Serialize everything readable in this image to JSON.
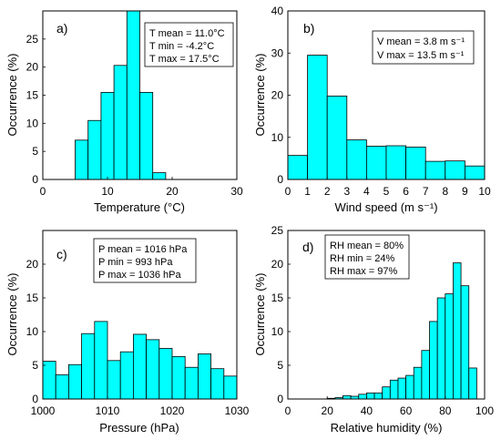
{
  "chart_data": [
    {
      "panel": "a)",
      "type": "bar",
      "xlabel": "Temperature (°C)",
      "ylabel": "Occurrence (%)",
      "xlim": [
        0,
        30
      ],
      "ylim": [
        0,
        30
      ],
      "xticks": [
        0,
        10,
        20,
        30
      ],
      "yticks": [
        0,
        5,
        10,
        15,
        20,
        25
      ],
      "bin_width": 2,
      "bins_start": [
        5,
        7,
        9,
        11,
        13,
        15,
        17
      ],
      "values": [
        7,
        10.5,
        15.5,
        20.3,
        30,
        15.5,
        1.2
      ],
      "stats": [
        "T mean = 11.0°C",
        "T min = -4.2°C",
        "T max = 17.5°C"
      ],
      "stats_position": "top-right",
      "bar_color": "#00FFFF",
      "grid": false
    },
    {
      "panel": "b)",
      "type": "bar",
      "xlabel": "Wind speed (m s⁻¹)",
      "ylabel": "Occurrence (%)",
      "xlim": [
        0,
        10
      ],
      "ylim": [
        0,
        40
      ],
      "xticks": [
        0,
        1,
        2,
        3,
        4,
        5,
        6,
        7,
        8,
        9,
        10
      ],
      "yticks": [
        0,
        10,
        20,
        30,
        40
      ],
      "bin_width": 1,
      "bins_start": [
        0,
        1,
        2,
        3,
        4,
        5,
        6,
        7,
        8,
        9
      ],
      "values": [
        5.7,
        29.5,
        19.8,
        9.4,
        7.9,
        8,
        7.7,
        4.3,
        4.4,
        3.2
      ],
      "stats": [
        "V mean = 3.8 m s⁻¹",
        "V max = 13.5 m s⁻¹"
      ],
      "stats_position": "top-right",
      "bar_color": "#00FFFF",
      "grid": false
    },
    {
      "panel": "c)",
      "type": "bar",
      "xlabel": "Pressure (hPa)",
      "ylabel": "Occurrence (%)",
      "xlim": [
        1000,
        1030
      ],
      "ylim": [
        0,
        25
      ],
      "xticks": [
        1000,
        1010,
        1020,
        1030
      ],
      "yticks": [
        0,
        5,
        10,
        15,
        20
      ],
      "bin_width": 2,
      "bins_start": [
        1000,
        1002,
        1004,
        1006,
        1008,
        1010,
        1012,
        1014,
        1016,
        1018,
        1020,
        1022,
        1024,
        1026,
        1028
      ],
      "values": [
        5.6,
        3.6,
        5.1,
        9.7,
        11.5,
        5.7,
        7,
        9.6,
        8.8,
        7.5,
        6.3,
        4.7,
        6.7,
        4.5,
        3.4
      ],
      "stats": [
        "P mean = 1016 hPa",
        "P min = 993 hPa",
        "P max = 1036 hPa"
      ],
      "stats_position": "top-left",
      "bar_color": "#00FFFF",
      "grid": false
    },
    {
      "panel": "d)",
      "type": "bar",
      "xlabel": "Relative humidity (%)",
      "ylabel": "Occurrence (%)",
      "xlim": [
        0,
        100
      ],
      "ylim": [
        0,
        25
      ],
      "xticks": [
        0,
        20,
        40,
        60,
        80,
        100
      ],
      "yticks": [
        0,
        5,
        10,
        15,
        20,
        25
      ],
      "bin_width": 4,
      "bins_start": [
        20,
        24,
        28,
        32,
        36,
        40,
        44,
        48,
        52,
        56,
        60,
        64,
        68,
        72,
        76,
        80,
        84,
        88,
        92,
        96
      ],
      "values": [
        0.1,
        0.2,
        0.5,
        0.4,
        0.7,
        0.9,
        0.9,
        1.8,
        2.8,
        3.1,
        3.5,
        4.7,
        7.2,
        11.5,
        15,
        15.6,
        20.2,
        16.8,
        4.6,
        0
      ],
      "stats": [
        "RH mean = 80%",
        "RH min = 24%",
        "RH max = 97%"
      ],
      "stats_position": "top-left",
      "bar_color": "#00FFFF",
      "grid": false
    }
  ]
}
